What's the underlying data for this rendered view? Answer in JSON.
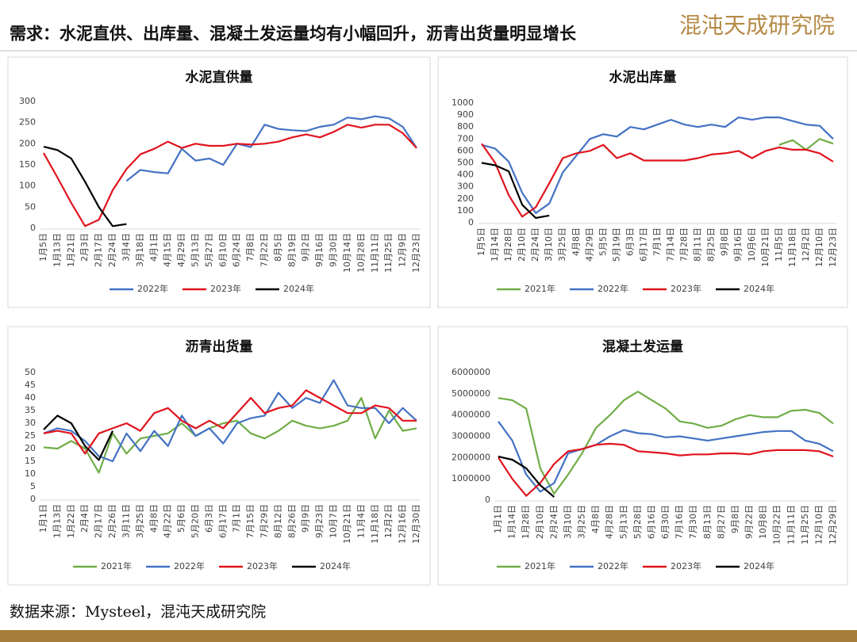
{
  "header": {
    "title": "需求：水泥直供、出库量、混凝土发运量均有小幅回升，沥青出货量明显增长",
    "logo": "混沌天成研究院"
  },
  "footer": "数据来源：Mysteel，混沌天成研究院",
  "chart_data": [
    {
      "type": "line",
      "title": "水泥直供量",
      "categories": [
        "1月5日",
        "1月13日",
        "1月21日",
        "2月3日",
        "2月17日",
        "2月24日",
        "3月4日",
        "3月18日",
        "4月1日",
        "4月15日",
        "4月29日",
        "5月13日",
        "5月27日",
        "6月10日",
        "6月24日",
        "7月8日",
        "7月22日",
        "8月5日",
        "8月19日",
        "9月2日",
        "9月16日",
        "9月30日",
        "10月14日",
        "10月28日",
        "11月11日",
        "11月25日",
        "12月9日",
        "12月23日"
      ],
      "ylim": [
        0,
        300
      ],
      "yticks": [
        0,
        50,
        100,
        150,
        200,
        250,
        300
      ],
      "series": [
        {
          "name": "2022年",
          "color": "#4472c4",
          "values": [
            null,
            null,
            null,
            null,
            null,
            null,
            112,
            138,
            133,
            130,
            188,
            160,
            165,
            150,
            200,
            192,
            245,
            235,
            232,
            230,
            240,
            245,
            262,
            258,
            265,
            260,
            240,
            190
          ]
        },
        {
          "name": "2023年",
          "color": "#e0141e",
          "values": [
            178,
            120,
            60,
            5,
            20,
            90,
            140,
            175,
            188,
            205,
            190,
            200,
            195,
            195,
            200,
            198,
            200,
            205,
            215,
            222,
            215,
            228,
            245,
            238,
            245,
            245,
            225,
            190
          ]
        },
        {
          "name": "2024年",
          "color": "#000000",
          "values": [
            193,
            185,
            165,
            110,
            50,
            5,
            10,
            null,
            null,
            null,
            null,
            null,
            null,
            null,
            null,
            null,
            null,
            null,
            null,
            null,
            null,
            null,
            null,
            null,
            null,
            null,
            null,
            null
          ]
        }
      ]
    },
    {
      "type": "line",
      "title": "水泥出库量",
      "categories": [
        "1月5日",
        "1月14日",
        "1月28日",
        "2月10日",
        "2月24日",
        "3月10日",
        "3月25日",
        "4月8日",
        "4月29日",
        "5月5日",
        "5月19日",
        "6月3日",
        "6月17日",
        "7月1日",
        "7月14日",
        "7月28日",
        "8月11日",
        "8月25日",
        "9月8日",
        "9月16日",
        "10月6日",
        "10月21日",
        "11月5日",
        "11月18日",
        "12月2日",
        "12月10日",
        "12月23日"
      ],
      "ylim": [
        0,
        1000
      ],
      "yticks": [
        0,
        100,
        200,
        300,
        400,
        500,
        600,
        700,
        800,
        900,
        1000
      ],
      "series": [
        {
          "name": "2021年",
          "color": "#70ad47",
          "values": [
            null,
            null,
            null,
            null,
            null,
            null,
            null,
            null,
            null,
            null,
            null,
            null,
            null,
            null,
            null,
            null,
            null,
            null,
            null,
            null,
            null,
            null,
            650,
            690,
            610,
            700,
            660
          ]
        },
        {
          "name": "2022年",
          "color": "#4472c4",
          "values": [
            650,
            620,
            510,
            250,
            80,
            160,
            420,
            560,
            700,
            740,
            720,
            800,
            780,
            820,
            860,
            820,
            800,
            820,
            800,
            880,
            860,
            880,
            880,
            850,
            820,
            810,
            700
          ]
        },
        {
          "name": "2023年",
          "color": "#e0141e",
          "values": [
            660,
            500,
            230,
            50,
            130,
            330,
            540,
            580,
            600,
            650,
            540,
            580,
            520,
            520,
            520,
            520,
            540,
            570,
            580,
            600,
            540,
            600,
            630,
            610,
            610,
            580,
            510
          ]
        },
        {
          "name": "2024年",
          "color": "#000000",
          "values": [
            500,
            480,
            430,
            150,
            40,
            60,
            null,
            null,
            null,
            null,
            null,
            null,
            null,
            null,
            null,
            null,
            null,
            null,
            null,
            null,
            null,
            null,
            null,
            null,
            null,
            null,
            null
          ]
        }
      ]
    },
    {
      "type": "line",
      "title": "沥青出货量",
      "categories": [
        "1月1日",
        "1月13日",
        "1月22日",
        "2月4日",
        "2月17日",
        "2月26日",
        "3月11日",
        "3月25日",
        "4月8日",
        "4月22日",
        "5月6日",
        "5月20日",
        "6月3日",
        "6月17日",
        "7月1日",
        "7月15日",
        "7月29日",
        "8月12日",
        "8月26日",
        "9月9日",
        "9月23日",
        "10月7日",
        "10月21日",
        "11月4日",
        "11月18日",
        "12月2日",
        "12月16日",
        "12月30日"
      ],
      "ylim": [
        0,
        50
      ],
      "yticks": [
        0,
        5,
        10,
        15,
        20,
        25,
        30,
        35,
        40,
        45,
        50
      ],
      "series": [
        {
          "name": "2021年",
          "color": "#70ad47",
          "values": [
            20.5,
            20,
            23,
            20,
            10.5,
            26,
            18,
            24,
            25,
            26,
            30,
            25,
            28,
            30,
            31,
            26,
            24,
            27,
            31,
            29,
            28,
            29,
            31,
            40,
            24,
            35,
            27,
            28
          ]
        },
        {
          "name": "2022年",
          "color": "#4472c4",
          "values": [
            26,
            28,
            27,
            23,
            17,
            15,
            26,
            19,
            27,
            21,
            33,
            25,
            28,
            22,
            30,
            32,
            33,
            42,
            36,
            40,
            38,
            47,
            37,
            36,
            36,
            30,
            36,
            31
          ]
        },
        {
          "name": "2023年",
          "color": "#e0141e",
          "values": [
            26,
            27,
            26,
            18,
            26,
            28,
            30,
            27,
            34,
            36,
            31,
            28,
            31,
            28,
            34,
            40,
            34,
            36,
            37,
            43,
            40,
            37,
            34,
            34,
            37,
            36,
            31,
            31
          ]
        },
        {
          "name": "2024年",
          "color": "#000000",
          "values": [
            27.5,
            33,
            30,
            21,
            15.5,
            27,
            null,
            null,
            null,
            null,
            null,
            null,
            null,
            null,
            null,
            null,
            null,
            null,
            null,
            null,
            null,
            null,
            null,
            null,
            null,
            null,
            null,
            null
          ]
        }
      ]
    },
    {
      "type": "line",
      "title": "混凝土发运量",
      "categories": [
        "1月1日",
        "1月14日",
        "1月28日",
        "2月10日",
        "2月24日",
        "3月10日",
        "3月25日",
        "4月8日",
        "4月28日",
        "5月13日",
        "5月28日",
        "6月16日",
        "6月30日",
        "7月16日",
        "7月30日",
        "8月13日",
        "8月27日",
        "9月8日",
        "9月22日",
        "10月8日",
        "10月22日",
        "11月11日",
        "11月25日",
        "12月10日",
        "12月29日"
      ],
      "ylim": [
        0,
        6000000
      ],
      "yticks": [
        0,
        1000000,
        2000000,
        3000000,
        4000000,
        5000000,
        6000000
      ],
      "series": [
        {
          "name": "2021年",
          "color": "#70ad47",
          "values": [
            4800000,
            4700000,
            4300000,
            1500000,
            300000,
            1200000,
            2200000,
            3400000,
            4000000,
            4700000,
            5100000,
            4700000,
            4300000,
            3700000,
            3600000,
            3400000,
            3500000,
            3800000,
            4000000,
            3900000,
            3900000,
            4200000,
            4250000,
            4100000,
            3600000
          ]
        },
        {
          "name": "2022年",
          "color": "#4472c4",
          "values": [
            3700000,
            2800000,
            1200000,
            400000,
            800000,
            2200000,
            2400000,
            2600000,
            3000000,
            3300000,
            3150000,
            3100000,
            2950000,
            3000000,
            2900000,
            2800000,
            2900000,
            3000000,
            3100000,
            3200000,
            3250000,
            3250000,
            2800000,
            2650000,
            2300000
          ]
        },
        {
          "name": "2023年",
          "color": "#e0141e",
          "values": [
            2000000,
            1000000,
            200000,
            800000,
            1700000,
            2300000,
            2400000,
            2600000,
            2650000,
            2600000,
            2300000,
            2250000,
            2200000,
            2100000,
            2150000,
            2150000,
            2200000,
            2200000,
            2150000,
            2300000,
            2350000,
            2350000,
            2350000,
            2300000,
            2050000
          ]
        },
        {
          "name": "2024年",
          "color": "#000000",
          "values": [
            2050000,
            1900000,
            1500000,
            700000,
            150000,
            null,
            null,
            null,
            null,
            null,
            null,
            null,
            null,
            null,
            null,
            null,
            null,
            null,
            null,
            null,
            null,
            null,
            null,
            null,
            null
          ]
        }
      ]
    }
  ]
}
